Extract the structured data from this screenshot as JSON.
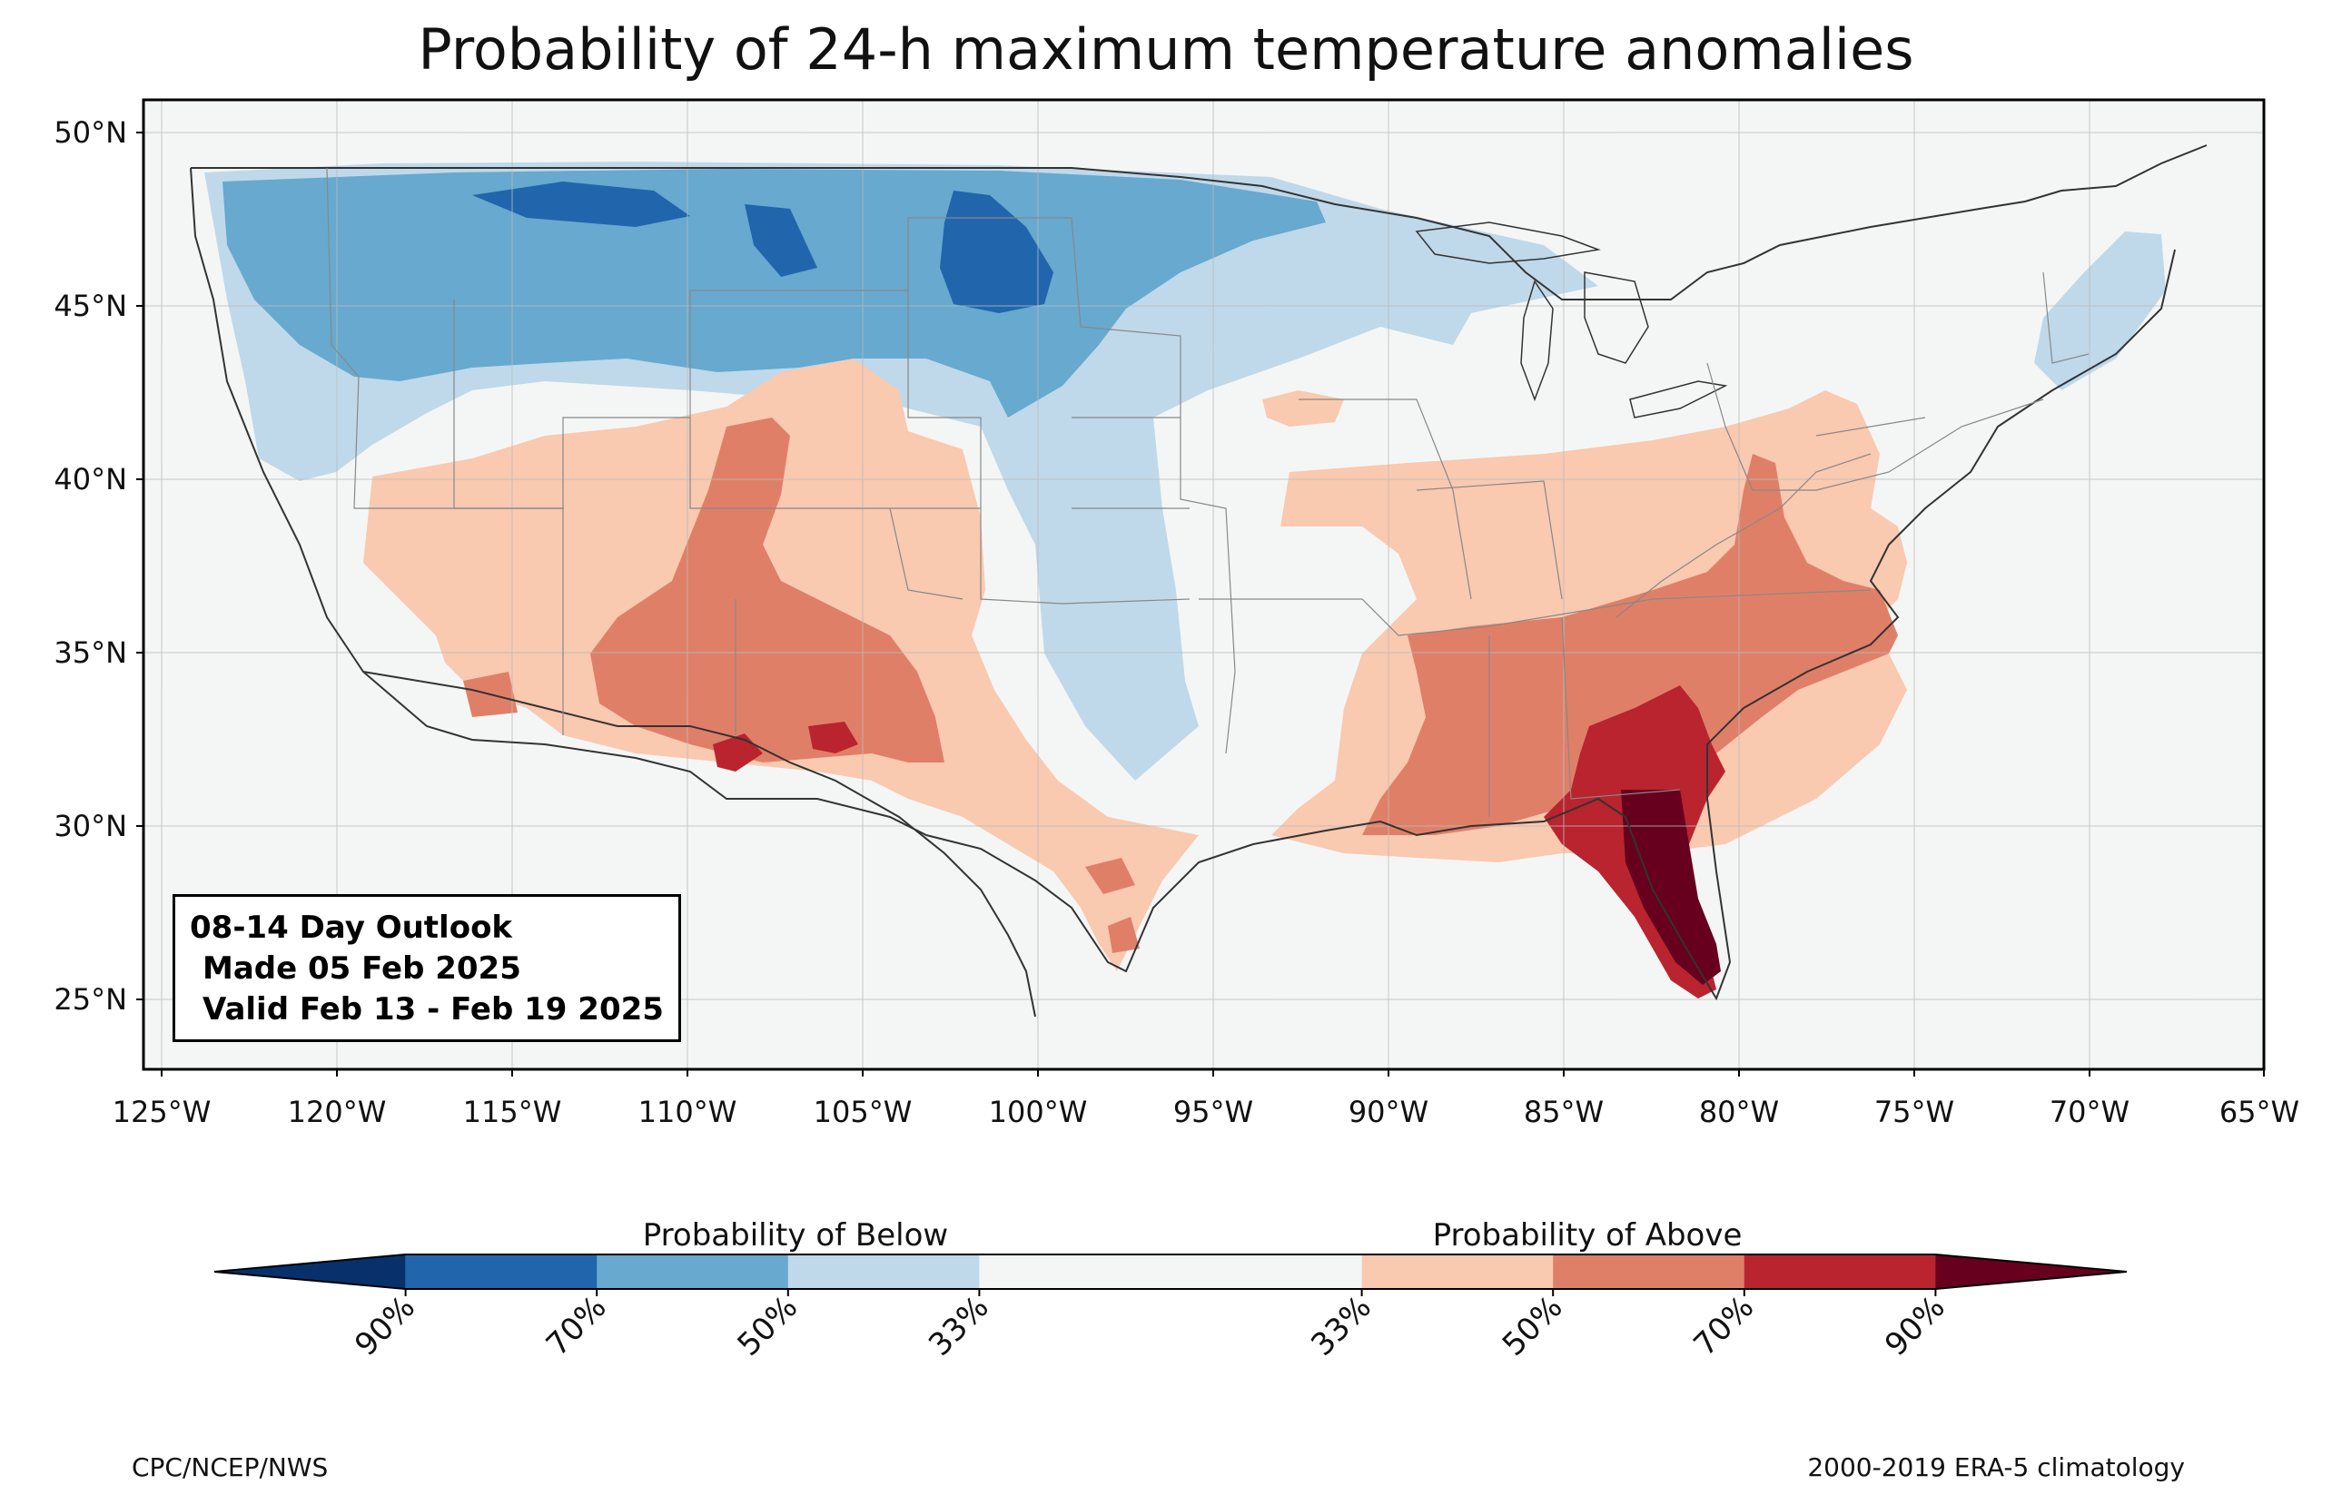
{
  "title": "Probability of 24-h maximum temperature anomalies",
  "info": {
    "line1": "08-14 Day Outlook",
    "line2": "Made 05 Feb 2025",
    "line3": "Valid Feb 13 - Feb 19 2025"
  },
  "map": {
    "region": "Contiguous United States",
    "lon_range": [
      -126,
      -65
    ],
    "lat_range": [
      23,
      51
    ],
    "lat_ticks": [
      "50°N",
      "45°N",
      "40°N",
      "35°N",
      "30°N",
      "25°N"
    ],
    "lon_ticks": [
      "125°W",
      "120°W",
      "115°W",
      "110°W",
      "105°W",
      "100°W",
      "95°W",
      "90°W",
      "85°W",
      "80°W",
      "75°W",
      "70°W",
      "65°W"
    ]
  },
  "colorbar": {
    "below_label": "Probability of Below",
    "above_label": "Probability of Above",
    "below_colors": [
      "#08306b",
      "#2166ac",
      "#67a9cf",
      "#bfd9ea"
    ],
    "neutral_colors": [
      "#f4f6f6",
      "#f4f6f6"
    ],
    "above_colors": [
      "#f9c9b0",
      "#e07f68",
      "#b9242f",
      "#67001f"
    ],
    "tick_labels": [
      "90%",
      "70%",
      "50%",
      "33%",
      "33%",
      "50%",
      "70%",
      "90%"
    ]
  },
  "footer": {
    "left": "CPC/NCEP/NWS",
    "right": "2000-2019 ERA-5 climatology"
  }
}
